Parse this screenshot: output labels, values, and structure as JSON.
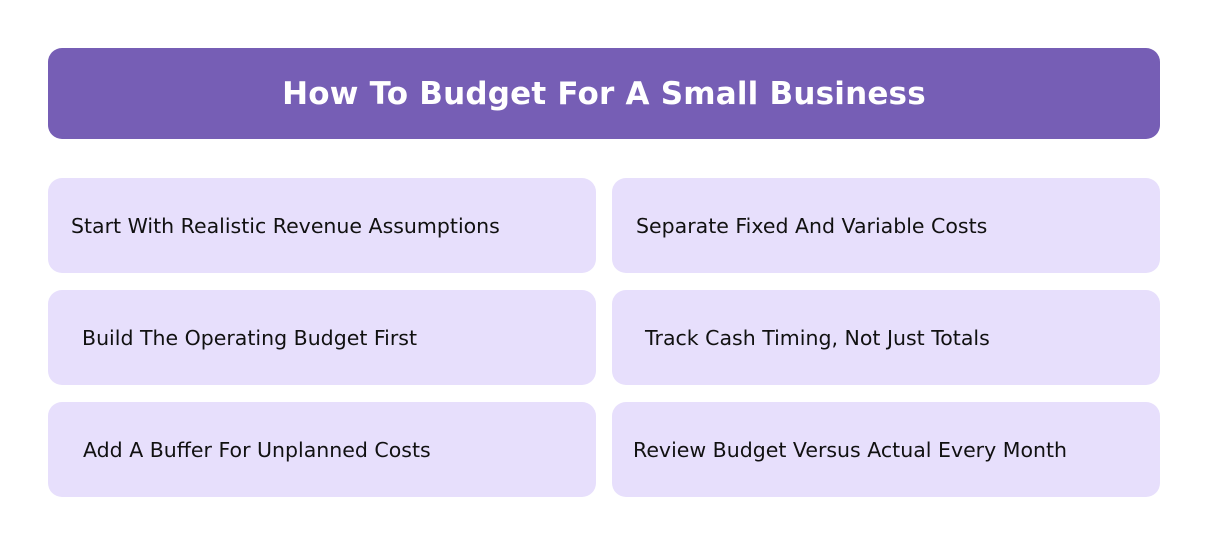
{
  "title": "How To Budget For A Small Business",
  "colors": {
    "header": "#765EB5",
    "card": "#E7DFFC",
    "title_text": "#FFFFFF",
    "card_text": "#111111"
  },
  "steps": [
    "Start With Realistic Revenue Assumptions",
    "Separate Fixed And Variable Costs",
    "Build The Operating Budget First",
    "Track Cash Timing, Not Just Totals",
    "Add A Buffer For Unplanned Costs",
    "Review Budget Versus Actual Every Month"
  ]
}
